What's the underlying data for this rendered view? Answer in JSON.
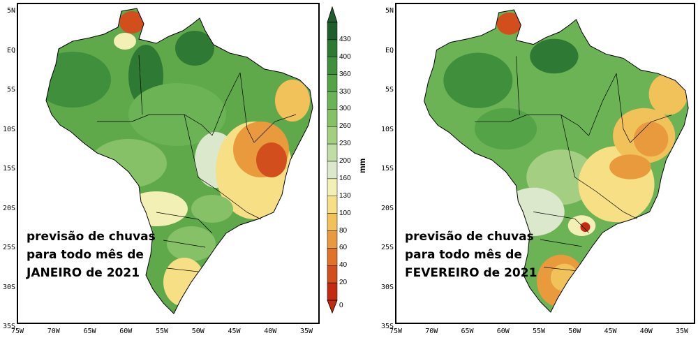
{
  "maps": [
    {
      "id": "janeiro",
      "caption": [
        "previsão de chuvas",
        "para todo mês de",
        "JANEIRO de 2021"
      ]
    },
    {
      "id": "fevereiro",
      "caption": [
        "previsão de chuvas",
        "para todo mês de",
        "FEVEREIRO de 2021"
      ]
    }
  ],
  "lat_ticks": [
    "5N",
    "EQ",
    "5S",
    "10S",
    "15S",
    "20S",
    "25S",
    "30S",
    "35S"
  ],
  "lon_ticks": [
    "75W",
    "70W",
    "65W",
    "60W",
    "55W",
    "50W",
    "45W",
    "40W",
    "35W"
  ],
  "colorbar": {
    "unit": "mm",
    "ticks": [
      "430",
      "400",
      "360",
      "330",
      "300",
      "260",
      "230",
      "200",
      "160",
      "130",
      "100",
      "80",
      "60",
      "40",
      "20",
      "0"
    ],
    "colors": [
      "#1f5e2c",
      "#2e7a34",
      "#3f8f3c",
      "#54a447",
      "#6cb355",
      "#86c168",
      "#a4cf82",
      "#c2dca6",
      "#dbe8cc",
      "#f3f0b5",
      "#f6df84",
      "#f2c25a",
      "#e99a3c",
      "#df7428",
      "#d24e1c",
      "#c22a12"
    ]
  }
}
